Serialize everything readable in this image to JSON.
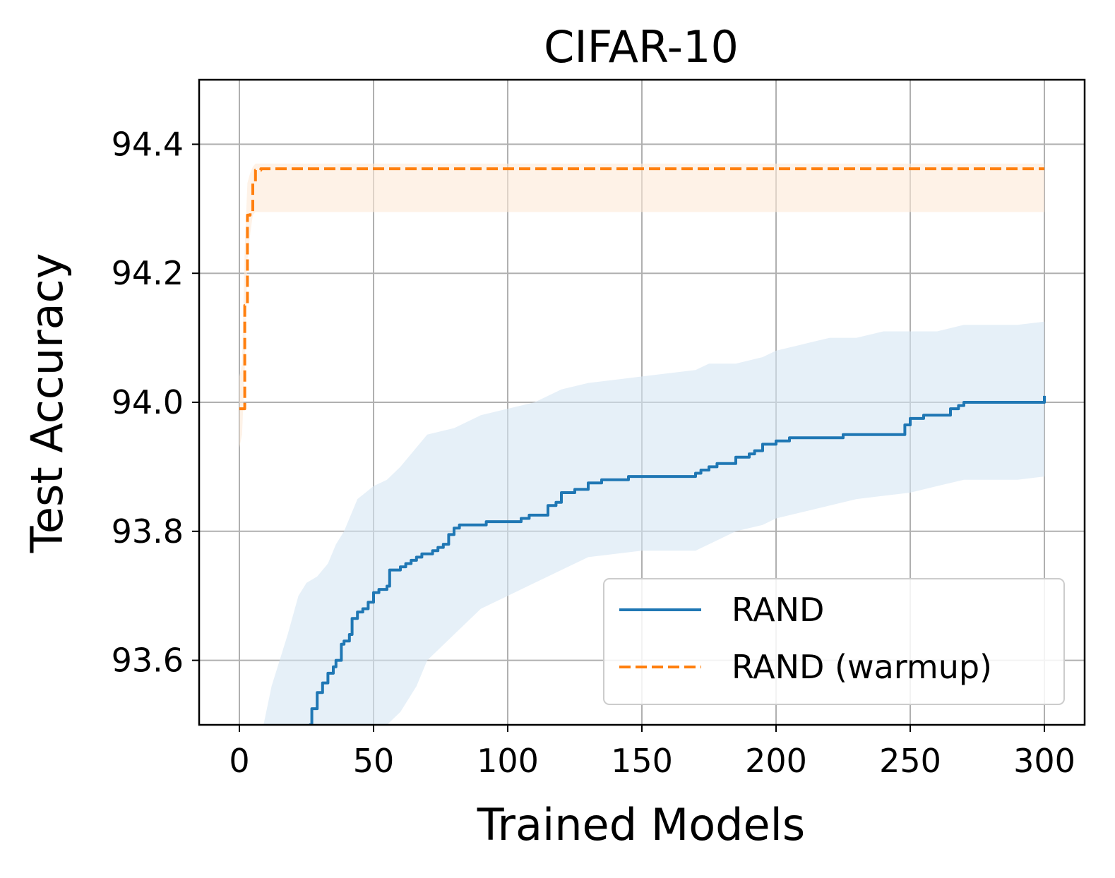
{
  "chart_data": {
    "type": "line",
    "title": "CIFAR-10",
    "xlabel": "Trained Models",
    "ylabel": "Test Accuracy",
    "xlim": [
      -15,
      315
    ],
    "ylim": [
      93.5,
      94.5
    ],
    "xticks": [
      0,
      50,
      100,
      150,
      200,
      250,
      300
    ],
    "xtick_labels": [
      "0",
      "50",
      "100",
      "150",
      "200",
      "250",
      "300"
    ],
    "yticks": [
      93.6,
      93.8,
      94.0,
      94.2,
      94.4
    ],
    "ytick_labels": [
      "93.6",
      "93.8",
      "94.0",
      "94.2",
      "94.4"
    ],
    "grid": true,
    "legend_position": "lower-right",
    "series": [
      {
        "name": "RAND",
        "color": "#1f77b4",
        "linestyle": "solid",
        "band_color": "#d6e6f4",
        "x": [
          26,
          27,
          29,
          31,
          33,
          35,
          36,
          38,
          39,
          41,
          42,
          44,
          46,
          48,
          50,
          52,
          55,
          56,
          60,
          62,
          64,
          66,
          68,
          70,
          72,
          74,
          76,
          78,
          80,
          82,
          85,
          90,
          92,
          95,
          100,
          105,
          108,
          112,
          115,
          118,
          120,
          125,
          130,
          135,
          140,
          145,
          150,
          160,
          170,
          172,
          175,
          178,
          180,
          185,
          190,
          192,
          195,
          200,
          205,
          210,
          215,
          220,
          225,
          230,
          235,
          240,
          245,
          248,
          250,
          255,
          260,
          265,
          268,
          270,
          280,
          290,
          297,
          300
        ],
        "y": [
          93.5,
          93.525,
          93.55,
          93.565,
          93.58,
          93.59,
          93.6,
          93.625,
          93.63,
          93.64,
          93.665,
          93.675,
          93.68,
          93.69,
          93.705,
          93.71,
          93.715,
          93.74,
          93.745,
          93.75,
          93.755,
          93.76,
          93.765,
          93.765,
          93.77,
          93.775,
          93.78,
          93.795,
          93.805,
          93.81,
          93.81,
          93.81,
          93.815,
          93.815,
          93.815,
          93.82,
          93.825,
          93.825,
          93.84,
          93.845,
          93.86,
          93.865,
          93.875,
          93.88,
          93.88,
          93.885,
          93.885,
          93.885,
          93.89,
          93.895,
          93.9,
          93.905,
          93.905,
          93.915,
          93.92,
          93.925,
          93.935,
          93.94,
          93.945,
          93.945,
          93.945,
          93.945,
          93.95,
          93.95,
          93.95,
          93.95,
          93.95,
          93.965,
          93.975,
          93.98,
          93.98,
          93.99,
          93.995,
          94.0,
          94.0,
          94.0,
          94.0,
          94.01
        ],
        "band_x": [
          9,
          12,
          15,
          18,
          22,
          25,
          29,
          33,
          36,
          39,
          41,
          44,
          47,
          50,
          55,
          60,
          66,
          70,
          80,
          90,
          100,
          110,
          120,
          130,
          150,
          170,
          175,
          185,
          195,
          200,
          210,
          220,
          230,
          240,
          250,
          260,
          270,
          280,
          290,
          300
        ],
        "band_lower": [
          93.5,
          93.5,
          93.5,
          93.5,
          93.5,
          93.5,
          93.5,
          93.5,
          93.5,
          93.5,
          93.5,
          93.5,
          93.5,
          93.5,
          93.5,
          93.52,
          93.56,
          93.6,
          93.64,
          93.68,
          93.7,
          93.72,
          93.74,
          93.76,
          93.77,
          93.77,
          93.78,
          93.8,
          93.81,
          93.82,
          93.83,
          93.84,
          93.85,
          93.855,
          93.86,
          93.87,
          93.88,
          93.88,
          93.88,
          93.885
        ],
        "band_upper": [
          93.5,
          93.56,
          93.6,
          93.64,
          93.7,
          93.72,
          93.73,
          93.75,
          93.78,
          93.8,
          93.82,
          93.85,
          93.86,
          93.87,
          93.88,
          93.9,
          93.93,
          93.95,
          93.96,
          93.98,
          93.99,
          94.0,
          94.02,
          94.03,
          94.04,
          94.05,
          94.06,
          94.06,
          94.07,
          94.08,
          94.09,
          94.1,
          94.1,
          94.11,
          94.11,
          94.11,
          94.12,
          94.12,
          94.12,
          94.125
        ]
      },
      {
        "name": "RAND (warmup)",
        "color": "#ff7f0e",
        "linestyle": "dashed",
        "band_color": "#fde9d7",
        "x": [
          0,
          1,
          2,
          3,
          4,
          5,
          6,
          8,
          10,
          20,
          50,
          100,
          150,
          200,
          250,
          300
        ],
        "y": [
          93.99,
          93.99,
          94.15,
          94.29,
          94.295,
          94.34,
          94.36,
          94.362,
          94.362,
          94.362,
          94.362,
          94.362,
          94.362,
          94.362,
          94.362,
          94.362
        ],
        "band_x": [
          0,
          1,
          2,
          3,
          4,
          5,
          6,
          8,
          10,
          20,
          50,
          100,
          150,
          200,
          250,
          300
        ],
        "band_lower": [
          93.93,
          93.95,
          94.05,
          94.22,
          94.26,
          94.29,
          94.295,
          94.295,
          94.295,
          94.295,
          94.295,
          94.295,
          94.295,
          94.295,
          94.295,
          94.295
        ],
        "band_upper": [
          94.04,
          94.06,
          94.24,
          94.34,
          94.355,
          94.365,
          94.37,
          94.37,
          94.37,
          94.37,
          94.37,
          94.37,
          94.37,
          94.37,
          94.37,
          94.37
        ]
      }
    ]
  }
}
